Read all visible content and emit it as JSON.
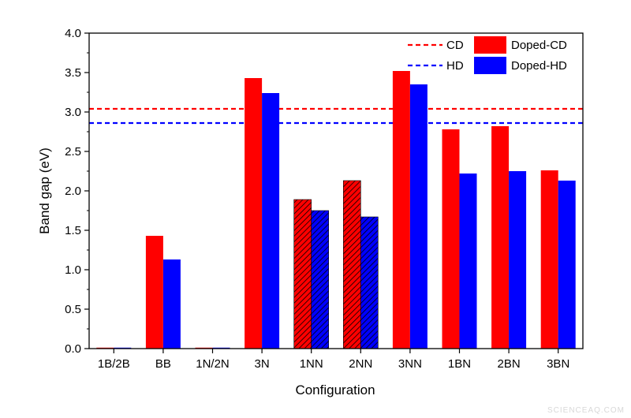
{
  "chart_data": {
    "type": "bar",
    "xlabel": "Configuration",
    "ylabel": "Band gap (eV)",
    "ylim": [
      0.0,
      4.0
    ],
    "yticks": [
      "0.0",
      "0.5",
      "1.0",
      "1.5",
      "2.0",
      "2.5",
      "3.0",
      "3.5",
      "4.0"
    ],
    "categories": [
      "1B/2B",
      "BB",
      "1N/2N",
      "3N",
      "1NN",
      "2NN",
      "3NN",
      "1BN",
      "2BN",
      "3BN"
    ],
    "series": [
      {
        "name": "Doped-CD",
        "color": "#ff0000",
        "values": [
          0.0,
          1.43,
          0.0,
          3.43,
          1.89,
          2.13,
          3.52,
          2.78,
          2.82,
          2.26
        ],
        "hatched": [
          false,
          false,
          false,
          false,
          true,
          true,
          false,
          false,
          false,
          false
        ]
      },
      {
        "name": "Doped-HD",
        "color": "#0000ff",
        "values": [
          0.0,
          1.13,
          0.0,
          3.24,
          1.75,
          1.67,
          3.35,
          2.22,
          2.25,
          2.13
        ],
        "hatched": [
          false,
          false,
          false,
          false,
          true,
          true,
          false,
          false,
          false,
          false
        ]
      }
    ],
    "reference_lines": [
      {
        "name": "CD",
        "value": 3.04,
        "color": "#ff0000",
        "style": "dashed"
      },
      {
        "name": "HD",
        "value": 2.86,
        "color": "#0000ff",
        "style": "dashed"
      }
    ],
    "legend": {
      "placement": "top-right",
      "entries": [
        "CD",
        "Doped-CD",
        "HD",
        "Doped-HD"
      ]
    },
    "grid": false
  },
  "watermark": "SCIENCEAQ.COM"
}
